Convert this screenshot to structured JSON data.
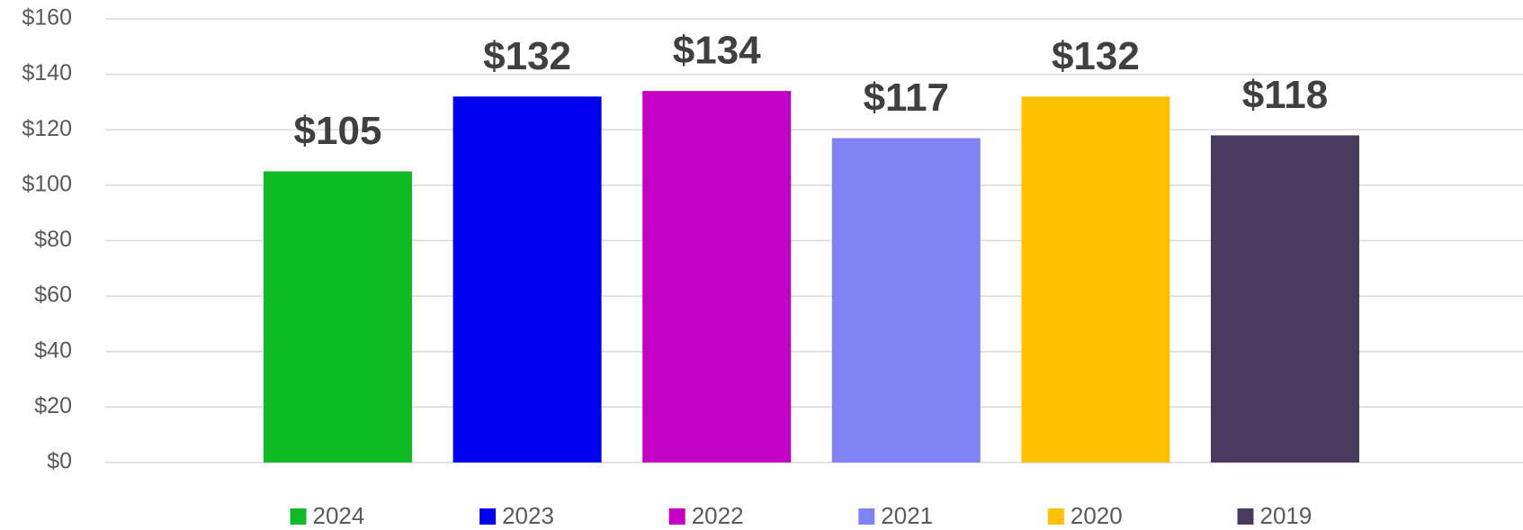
{
  "chart_data": {
    "type": "bar",
    "series": [
      {
        "name": "2024",
        "color": "#0fbb23",
        "values": [
          105
        ],
        "value_labels": [
          "$105"
        ]
      },
      {
        "name": "2023",
        "color": "#0000f0",
        "values": [
          132
        ],
        "value_labels": [
          "$132"
        ]
      },
      {
        "name": "2022",
        "color": "#c400c4",
        "values": [
          134
        ],
        "value_labels": [
          "$134"
        ]
      },
      {
        "name": "2021",
        "color": "#8083f4",
        "values": [
          117
        ],
        "value_labels": [
          "$117"
        ]
      },
      {
        "name": "2020",
        "color": "#ffc000",
        "values": [
          132
        ],
        "value_labels": [
          "$132"
        ]
      },
      {
        "name": "2019",
        "color": "#4b3a60",
        "values": [
          118
        ],
        "value_labels": [
          "$118"
        ]
      }
    ],
    "ylim": [
      0,
      160
    ],
    "yticks": [
      {
        "value": 0,
        "label": "$0"
      },
      {
        "value": 20,
        "label": "$20"
      },
      {
        "value": 40,
        "label": "$40"
      },
      {
        "value": 60,
        "label": "$60"
      },
      {
        "value": 80,
        "label": "$80"
      },
      {
        "value": 100,
        "label": "$100"
      },
      {
        "value": 120,
        "label": "$120"
      },
      {
        "value": 140,
        "label": "$140"
      },
      {
        "value": 160,
        "label": "$160"
      }
    ],
    "grid": true,
    "legend": "bottom"
  }
}
